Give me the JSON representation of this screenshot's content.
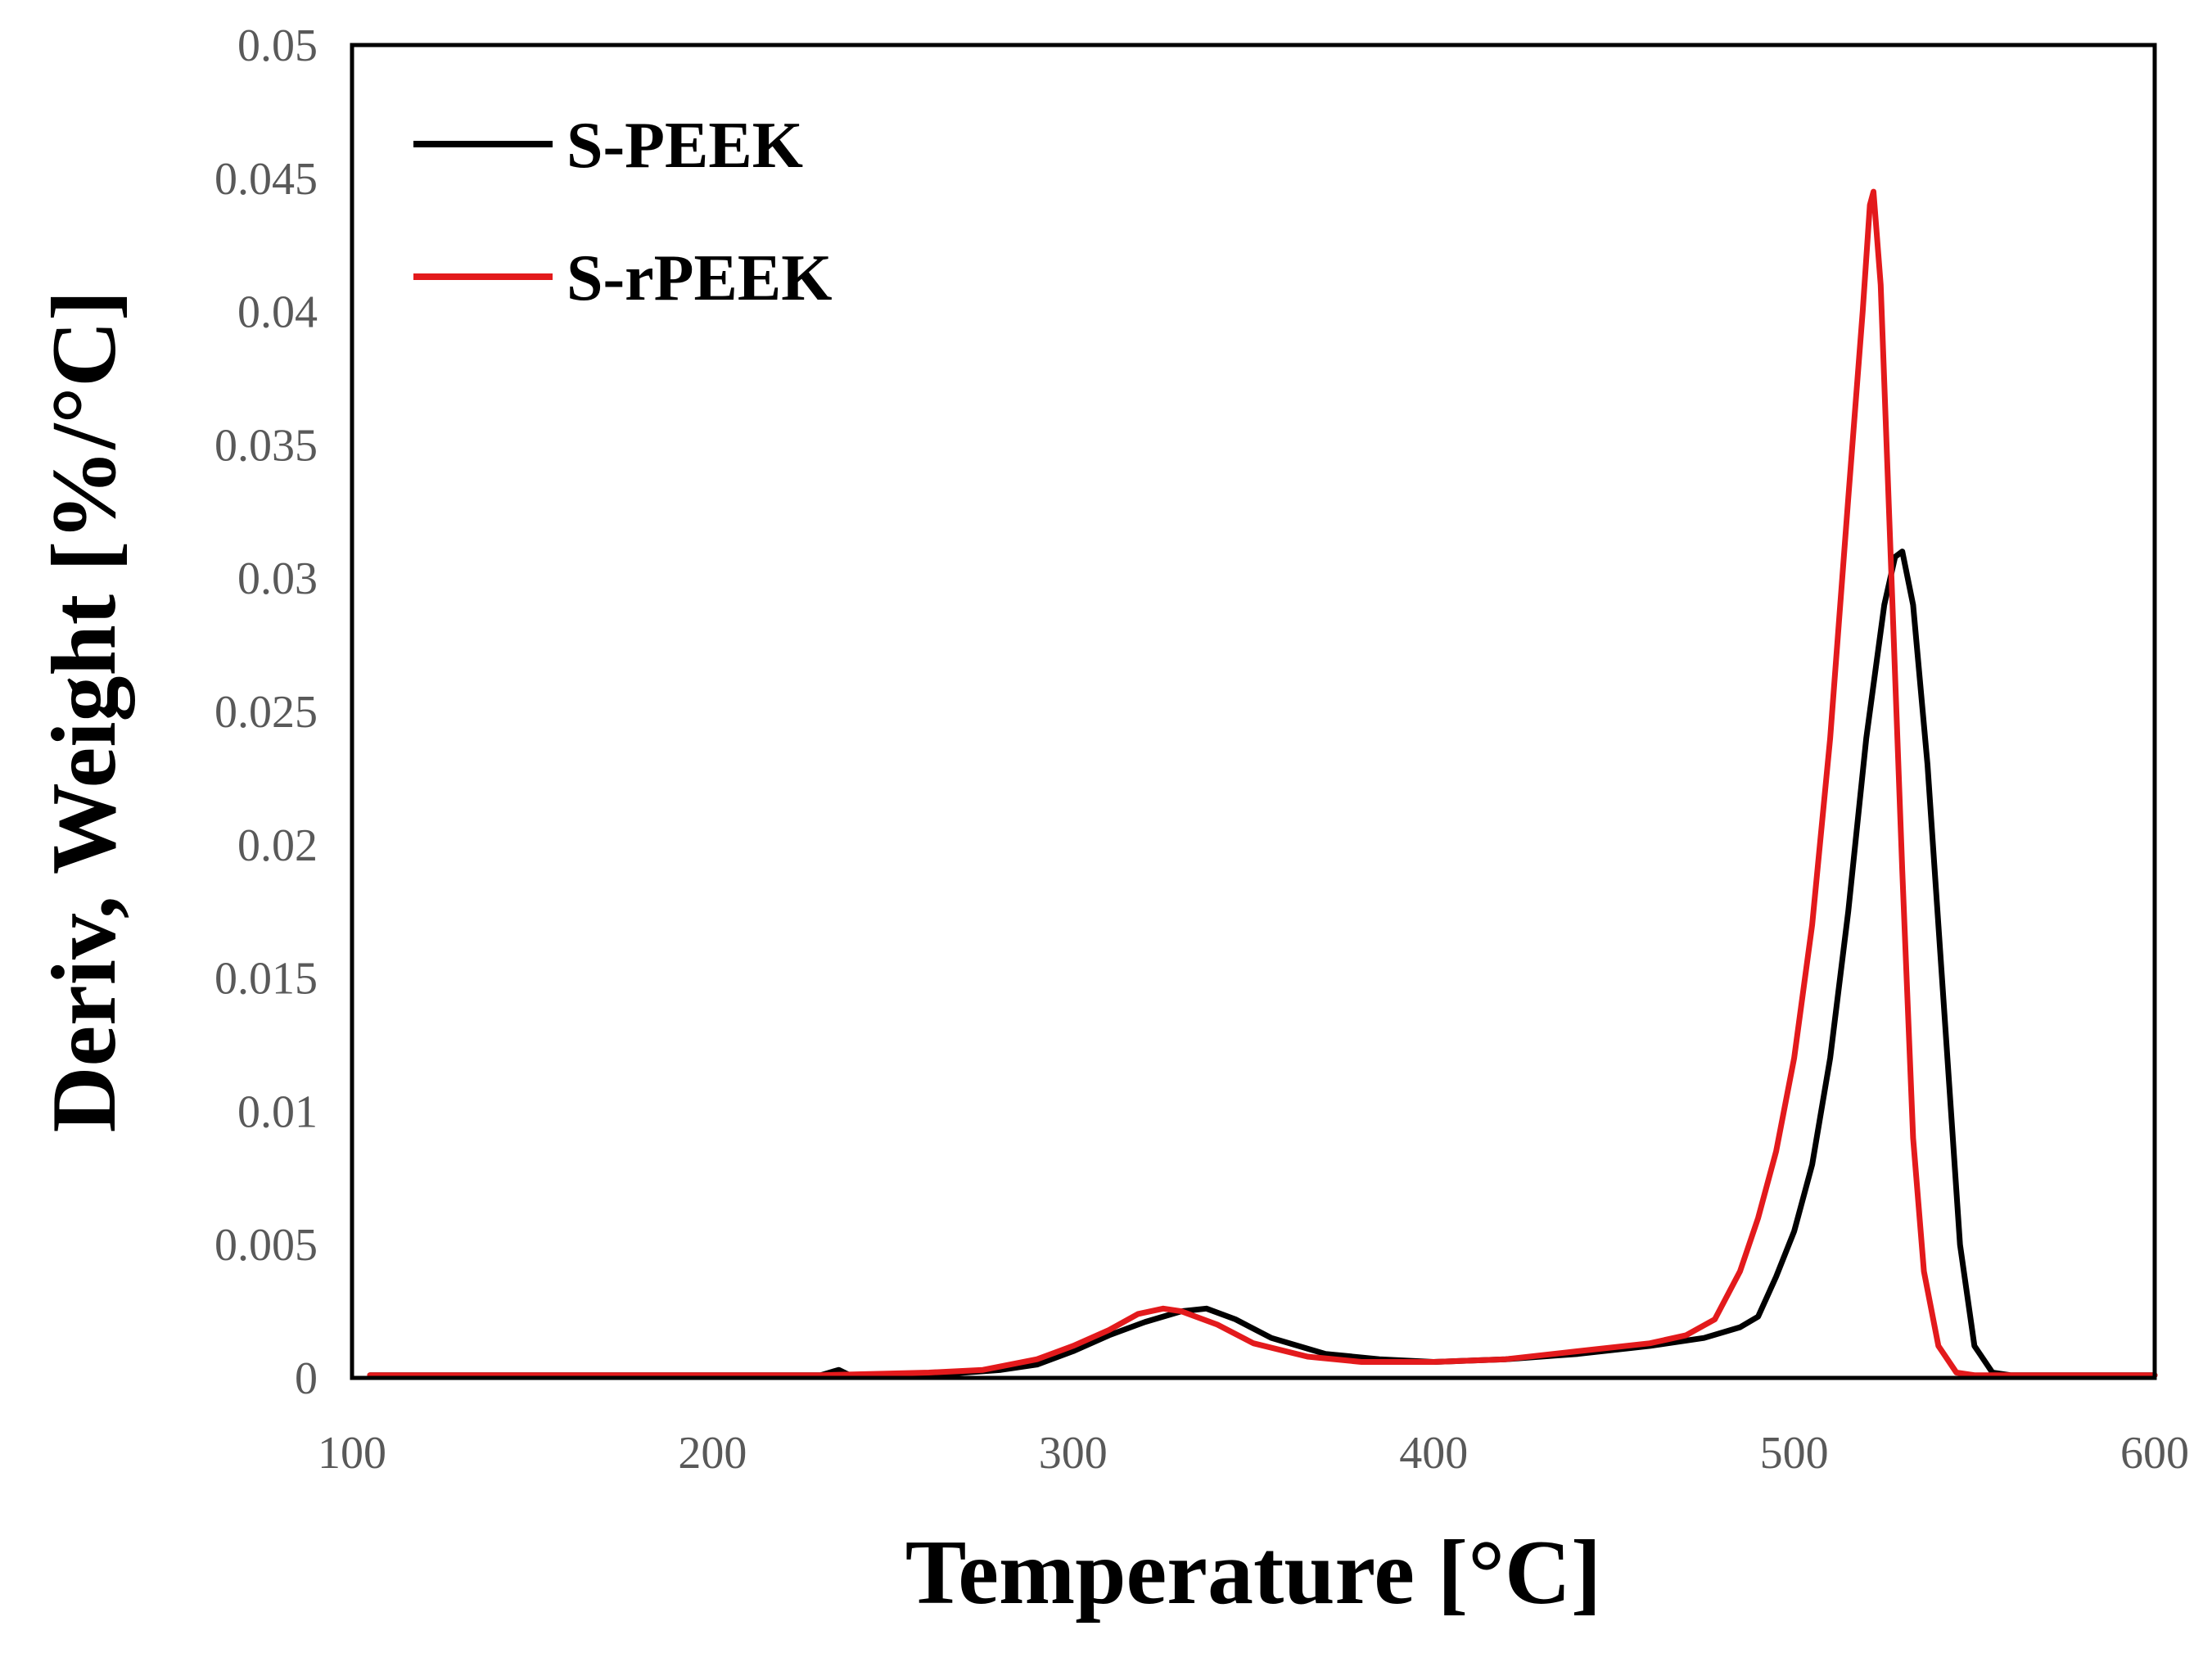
{
  "chart_data": {
    "type": "line",
    "title": "",
    "xlabel": "Temperature  [°C]",
    "ylabel": "Deriv, Weight  [%/°C]",
    "xlim": [
      100,
      600
    ],
    "ylim": [
      0,
      0.05
    ],
    "x_ticks": [
      100,
      200,
      300,
      400,
      500,
      600
    ],
    "y_ticks": [
      0,
      0.005,
      0.01,
      0.015,
      0.02,
      0.025,
      0.03,
      0.035,
      0.04,
      0.045,
      0.05
    ],
    "x_tick_labels": [
      "100",
      "200",
      "300",
      "400",
      "500",
      "600"
    ],
    "y_tick_labels": [
      "0",
      "0.005",
      "0.01",
      "0.015",
      "0.02",
      "0.025",
      "0.03",
      "0.035",
      "0.04",
      "0.045",
      "0.05"
    ],
    "grid": false,
    "legend_position": "top-left",
    "series": [
      {
        "name": "S-PEEK",
        "color": "#000000",
        "points": [
          [
            105,
            0.0001
          ],
          [
            150,
            0.0001
          ],
          [
            200,
            0.0001
          ],
          [
            230,
            0.0001
          ],
          [
            235,
            0.0003
          ],
          [
            238,
            0.0001
          ],
          [
            260,
            0.0001
          ],
          [
            280,
            0.0003
          ],
          [
            290,
            0.0005
          ],
          [
            300,
            0.001
          ],
          [
            310,
            0.0016
          ],
          [
            320,
            0.0021
          ],
          [
            330,
            0.0025
          ],
          [
            337,
            0.0026
          ],
          [
            345,
            0.0022
          ],
          [
            355,
            0.0015
          ],
          [
            370,
            0.0009
          ],
          [
            385,
            0.0007
          ],
          [
            400,
            0.0006
          ],
          [
            420,
            0.0007
          ],
          [
            440,
            0.0009
          ],
          [
            460,
            0.0012
          ],
          [
            475,
            0.0015
          ],
          [
            485,
            0.0019
          ],
          [
            490,
            0.0023
          ],
          [
            495,
            0.0038
          ],
          [
            500,
            0.0055
          ],
          [
            505,
            0.008
          ],
          [
            510,
            0.012
          ],
          [
            515,
            0.0175
          ],
          [
            520,
            0.024
          ],
          [
            525,
            0.029
          ],
          [
            528,
            0.0308
          ],
          [
            530,
            0.031
          ],
          [
            533,
            0.029
          ],
          [
            537,
            0.023
          ],
          [
            542,
            0.013
          ],
          [
            546,
            0.005
          ],
          [
            550,
            0.0012
          ],
          [
            555,
            0.0002
          ],
          [
            560,
            0.0001
          ],
          [
            600,
            0.0001
          ]
        ]
      },
      {
        "name": "S-rPEEK",
        "color": "#e31a1c",
        "points": [
          [
            105,
            0.0001
          ],
          [
            150,
            0.0001
          ],
          [
            200,
            0.0001
          ],
          [
            230,
            0.0001
          ],
          [
            260,
            0.0002
          ],
          [
            275,
            0.0003
          ],
          [
            290,
            0.0007
          ],
          [
            300,
            0.0012
          ],
          [
            310,
            0.0018
          ],
          [
            318,
            0.0024
          ],
          [
            325,
            0.0026
          ],
          [
            330,
            0.0025
          ],
          [
            340,
            0.002
          ],
          [
            350,
            0.0013
          ],
          [
            365,
            0.0008
          ],
          [
            380,
            0.0006
          ],
          [
            400,
            0.0006
          ],
          [
            420,
            0.0007
          ],
          [
            440,
            0.001
          ],
          [
            460,
            0.0013
          ],
          [
            470,
            0.0016
          ],
          [
            478,
            0.0022
          ],
          [
            485,
            0.004
          ],
          [
            490,
            0.006
          ],
          [
            495,
            0.0085
          ],
          [
            500,
            0.012
          ],
          [
            505,
            0.017
          ],
          [
            510,
            0.024
          ],
          [
            515,
            0.033
          ],
          [
            519,
            0.04
          ],
          [
            521,
            0.044
          ],
          [
            522,
            0.0445
          ],
          [
            524,
            0.041
          ],
          [
            527,
            0.03
          ],
          [
            530,
            0.019
          ],
          [
            533,
            0.009
          ],
          [
            536,
            0.004
          ],
          [
            540,
            0.0012
          ],
          [
            545,
            0.0002
          ],
          [
            550,
            0.0001
          ],
          [
            600,
            0.0001
          ]
        ]
      }
    ]
  }
}
